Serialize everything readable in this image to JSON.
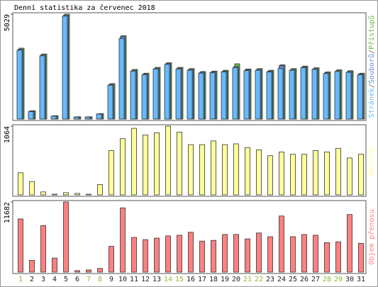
{
  "chart_data": [
    {
      "type": "bar",
      "title": "Denní statistika za červenec 2018",
      "ylim": [
        0,
        5029
      ],
      "yticks": [
        5029
      ],
      "legend_separator": "/",
      "series": [
        {
          "name": "Stránek",
          "color": "#66bbff",
          "values": [
            3300,
            360,
            3030,
            140,
            4930,
            95,
            95,
            240,
            1620,
            3860,
            2300,
            2120,
            2400,
            2620,
            2400,
            2340,
            2200,
            2220,
            2260,
            2460,
            2320,
            2340,
            2260,
            2420,
            2340,
            2460,
            2380,
            2180,
            2280,
            2240,
            2120
          ]
        },
        {
          "name": "Souborů",
          "color": "#6688dd",
          "values": [
            3350,
            380,
            3080,
            150,
            4980,
            100,
            100,
            250,
            1660,
            3950,
            2340,
            2160,
            2440,
            2660,
            2440,
            2380,
            2240,
            2260,
            2300,
            2520,
            2360,
            2380,
            2300,
            2560,
            2380,
            2500,
            2420,
            2220,
            2320,
            2280,
            2160
          ]
        },
        {
          "name": "Přístupů",
          "color": "#66bb44",
          "values": [
            3400,
            400,
            3120,
            160,
            5029,
            110,
            110,
            260,
            1700,
            4000,
            2380,
            2200,
            2480,
            2700,
            2480,
            2420,
            2280,
            2300,
            2340,
            2650,
            2400,
            2420,
            2340,
            2600,
            2420,
            2540,
            2460,
            2260,
            2360,
            2320,
            2200
          ]
        }
      ]
    },
    {
      "type": "bar",
      "ylim": [
        0,
        1064
      ],
      "yticks": [
        1064
      ],
      "series": [
        {
          "name": "Návštěv",
          "color": "#ffff99",
          "values": [
            343,
            206,
            46,
            11,
            34,
            23,
            11,
            160,
            686,
            870,
            1030,
            927,
            961,
            1064,
            972,
            778,
            778,
            835,
            778,
            790,
            732,
            698,
            606,
            664,
            629,
            629,
            686,
            664,
            721,
            572,
            629
          ]
        }
      ]
    },
    {
      "type": "bar",
      "ylim": [
        0,
        11682
      ],
      "yticks": [
        11682
      ],
      "series": [
        {
          "name": "Objem přenosu",
          "color": "#ff8080",
          "values": [
            8855,
            1970,
            7750,
            2340,
            11682,
            250,
            370,
            620,
            4300,
            10700,
            5780,
            5410,
            5660,
            6030,
            6150,
            6640,
            5170,
            5290,
            6270,
            6270,
            5530,
            6520,
            5900,
            9350,
            5900,
            6270,
            6150,
            4920,
            5040,
            9590,
            4800
          ]
        }
      ],
      "categories": [
        "1",
        "2",
        "3",
        "4",
        "5",
        "6",
        "7",
        "8",
        "9",
        "10",
        "11",
        "12",
        "13",
        "14",
        "15",
        "16",
        "17",
        "18",
        "19",
        "20",
        "21",
        "22",
        "23",
        "24",
        "25",
        "26",
        "27",
        "28",
        "29",
        "30",
        "31"
      ],
      "category_color": "#222222",
      "highlight_color": "#88bb33",
      "highlight": [
        0,
        6,
        7,
        13,
        14,
        20,
        21,
        27,
        28
      ]
    }
  ]
}
